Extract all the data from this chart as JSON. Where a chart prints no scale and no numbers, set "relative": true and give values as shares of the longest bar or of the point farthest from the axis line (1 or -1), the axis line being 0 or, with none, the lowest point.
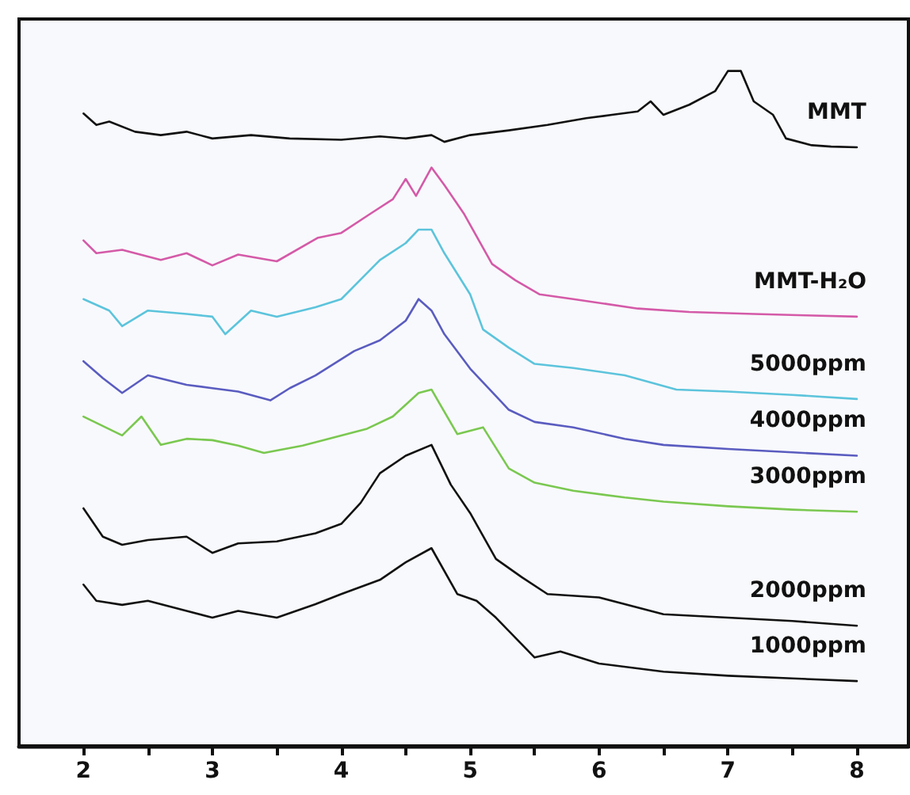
{
  "chart_data": {
    "type": "line",
    "relative": true,
    "xlim": [
      1.5,
      8.4
    ],
    "xticks": [
      2,
      {
        "value": 2.5,
        "label": null
      },
      3,
      {
        "value": 3.5,
        "label": null
      },
      4,
      {
        "value": 4.5,
        "label": null
      },
      5,
      {
        "value": 5.5,
        "label": null
      },
      6,
      {
        "value": 6.5,
        "label": null
      },
      7,
      {
        "value": 7.5,
        "label": null
      },
      8
    ],
    "grid": false,
    "legend": false,
    "marker": "none",
    "line_style": "solid",
    "series": [
      {
        "name": "MMT",
        "color": "#111111",
        "x": [
          2.0,
          2.1,
          2.2,
          2.4,
          2.6,
          2.8,
          3.0,
          3.3,
          3.6,
          4.0,
          4.3,
          4.5,
          4.7,
          4.8,
          5.0,
          5.3,
          5.6,
          5.9,
          6.1,
          6.3,
          6.4,
          6.5,
          6.7,
          6.9,
          7.0,
          7.1,
          7.2,
          7.35,
          7.45,
          7.65,
          7.8,
          8.0
        ],
        "values": [
          0.937,
          0.92,
          0.925,
          0.91,
          0.905,
          0.91,
          0.9,
          0.905,
          0.9,
          0.898,
          0.903,
          0.9,
          0.905,
          0.895,
          0.905,
          0.912,
          0.92,
          0.93,
          0.935,
          0.94,
          0.955,
          0.935,
          0.95,
          0.97,
          1.0,
          1.0,
          0.955,
          0.935,
          0.9,
          0.89,
          0.888,
          0.887
        ]
      },
      {
        "name": "MMT-H₂O",
        "color": "#d45aa8",
        "x": [
          2.0,
          2.1,
          2.3,
          2.6,
          2.8,
          3.0,
          3.2,
          3.5,
          3.82,
          4.0,
          4.23,
          4.4,
          4.5,
          4.58,
          4.7,
          4.8,
          4.95,
          5.17,
          5.35,
          5.54,
          5.8,
          6.3,
          6.7,
          7.2,
          7.6,
          8.0
        ],
        "values": [
          0.749,
          0.73,
          0.735,
          0.72,
          0.73,
          0.712,
          0.728,
          0.718,
          0.753,
          0.76,
          0.789,
          0.81,
          0.84,
          0.815,
          0.857,
          0.831,
          0.789,
          0.714,
          0.69,
          0.669,
          0.662,
          0.648,
          0.643,
          0.64,
          0.638,
          0.636
        ]
      },
      {
        "name": "5000ppm",
        "color": "#5cc4dc",
        "x": [
          2.0,
          2.2,
          2.3,
          2.5,
          2.8,
          3.0,
          3.1,
          3.3,
          3.5,
          3.8,
          4.0,
          4.3,
          4.5,
          4.6,
          4.7,
          4.8,
          5.0,
          5.1,
          5.3,
          5.5,
          5.8,
          6.2,
          6.6,
          7.0,
          7.5,
          8.0
        ],
        "values": [
          0.662,
          0.645,
          0.622,
          0.645,
          0.64,
          0.636,
          0.61,
          0.645,
          0.636,
          0.65,
          0.662,
          0.72,
          0.745,
          0.765,
          0.765,
          0.73,
          0.669,
          0.617,
          0.59,
          0.566,
          0.56,
          0.549,
          0.528,
          0.525,
          0.52,
          0.514
        ]
      },
      {
        "name": "4000ppm",
        "color": "#5a5cc0",
        "x": [
          2.0,
          2.15,
          2.3,
          2.5,
          2.8,
          3.0,
          3.2,
          3.45,
          3.6,
          3.8,
          4.1,
          4.3,
          4.5,
          4.6,
          4.7,
          4.8,
          5.0,
          5.3,
          5.5,
          5.8,
          6.2,
          6.5,
          7.0,
          7.5,
          8.0
        ],
        "values": [
          0.57,
          0.545,
          0.523,
          0.549,
          0.535,
          0.53,
          0.525,
          0.512,
          0.53,
          0.549,
          0.585,
          0.601,
          0.63,
          0.662,
          0.645,
          0.61,
          0.559,
          0.498,
          0.48,
          0.472,
          0.455,
          0.446,
          0.44,
          0.435,
          0.43
        ]
      },
      {
        "name": "3000ppm",
        "color": "#7ac850",
        "x": [
          2.0,
          2.3,
          2.45,
          2.6,
          2.8,
          3.0,
          3.2,
          3.4,
          3.7,
          4.0,
          4.2,
          4.4,
          4.6,
          4.7,
          4.9,
          5.1,
          5.3,
          5.5,
          5.8,
          6.2,
          6.5,
          7.0,
          7.5,
          8.0
        ],
        "values": [
          0.488,
          0.46,
          0.488,
          0.446,
          0.455,
          0.453,
          0.445,
          0.434,
          0.445,
          0.46,
          0.47,
          0.488,
          0.523,
          0.528,
          0.462,
          0.472,
          0.411,
          0.39,
          0.378,
          0.368,
          0.362,
          0.355,
          0.35,
          0.347
        ]
      },
      {
        "name": "2000ppm",
        "color": "#111111",
        "x": [
          2.0,
          2.15,
          2.3,
          2.5,
          2.8,
          3.0,
          3.2,
          3.5,
          3.8,
          4.0,
          4.15,
          4.3,
          4.5,
          4.7,
          4.85,
          5.0,
          5.2,
          5.4,
          5.6,
          6.0,
          6.5,
          7.0,
          7.5,
          8.0
        ],
        "values": [
          0.352,
          0.31,
          0.298,
          0.305,
          0.31,
          0.286,
          0.3,
          0.303,
          0.315,
          0.329,
          0.36,
          0.404,
          0.43,
          0.446,
          0.387,
          0.345,
          0.277,
          0.25,
          0.225,
          0.22,
          0.195,
          0.19,
          0.185,
          0.178
        ]
      },
      {
        "name": "1000ppm",
        "color": "#111111",
        "x": [
          2.0,
          2.1,
          2.3,
          2.5,
          2.8,
          3.0,
          3.2,
          3.5,
          3.8,
          4.0,
          4.3,
          4.5,
          4.7,
          4.9,
          5.05,
          5.2,
          5.5,
          5.7,
          6.0,
          6.5,
          7.0,
          7.5,
          8.0
        ],
        "values": [
          0.239,
          0.215,
          0.209,
          0.215,
          0.2,
          0.19,
          0.2,
          0.19,
          0.21,
          0.225,
          0.246,
          0.272,
          0.293,
          0.225,
          0.215,
          0.19,
          0.131,
          0.14,
          0.122,
          0.11,
          0.104,
          0.1,
          0.096
        ]
      }
    ]
  }
}
